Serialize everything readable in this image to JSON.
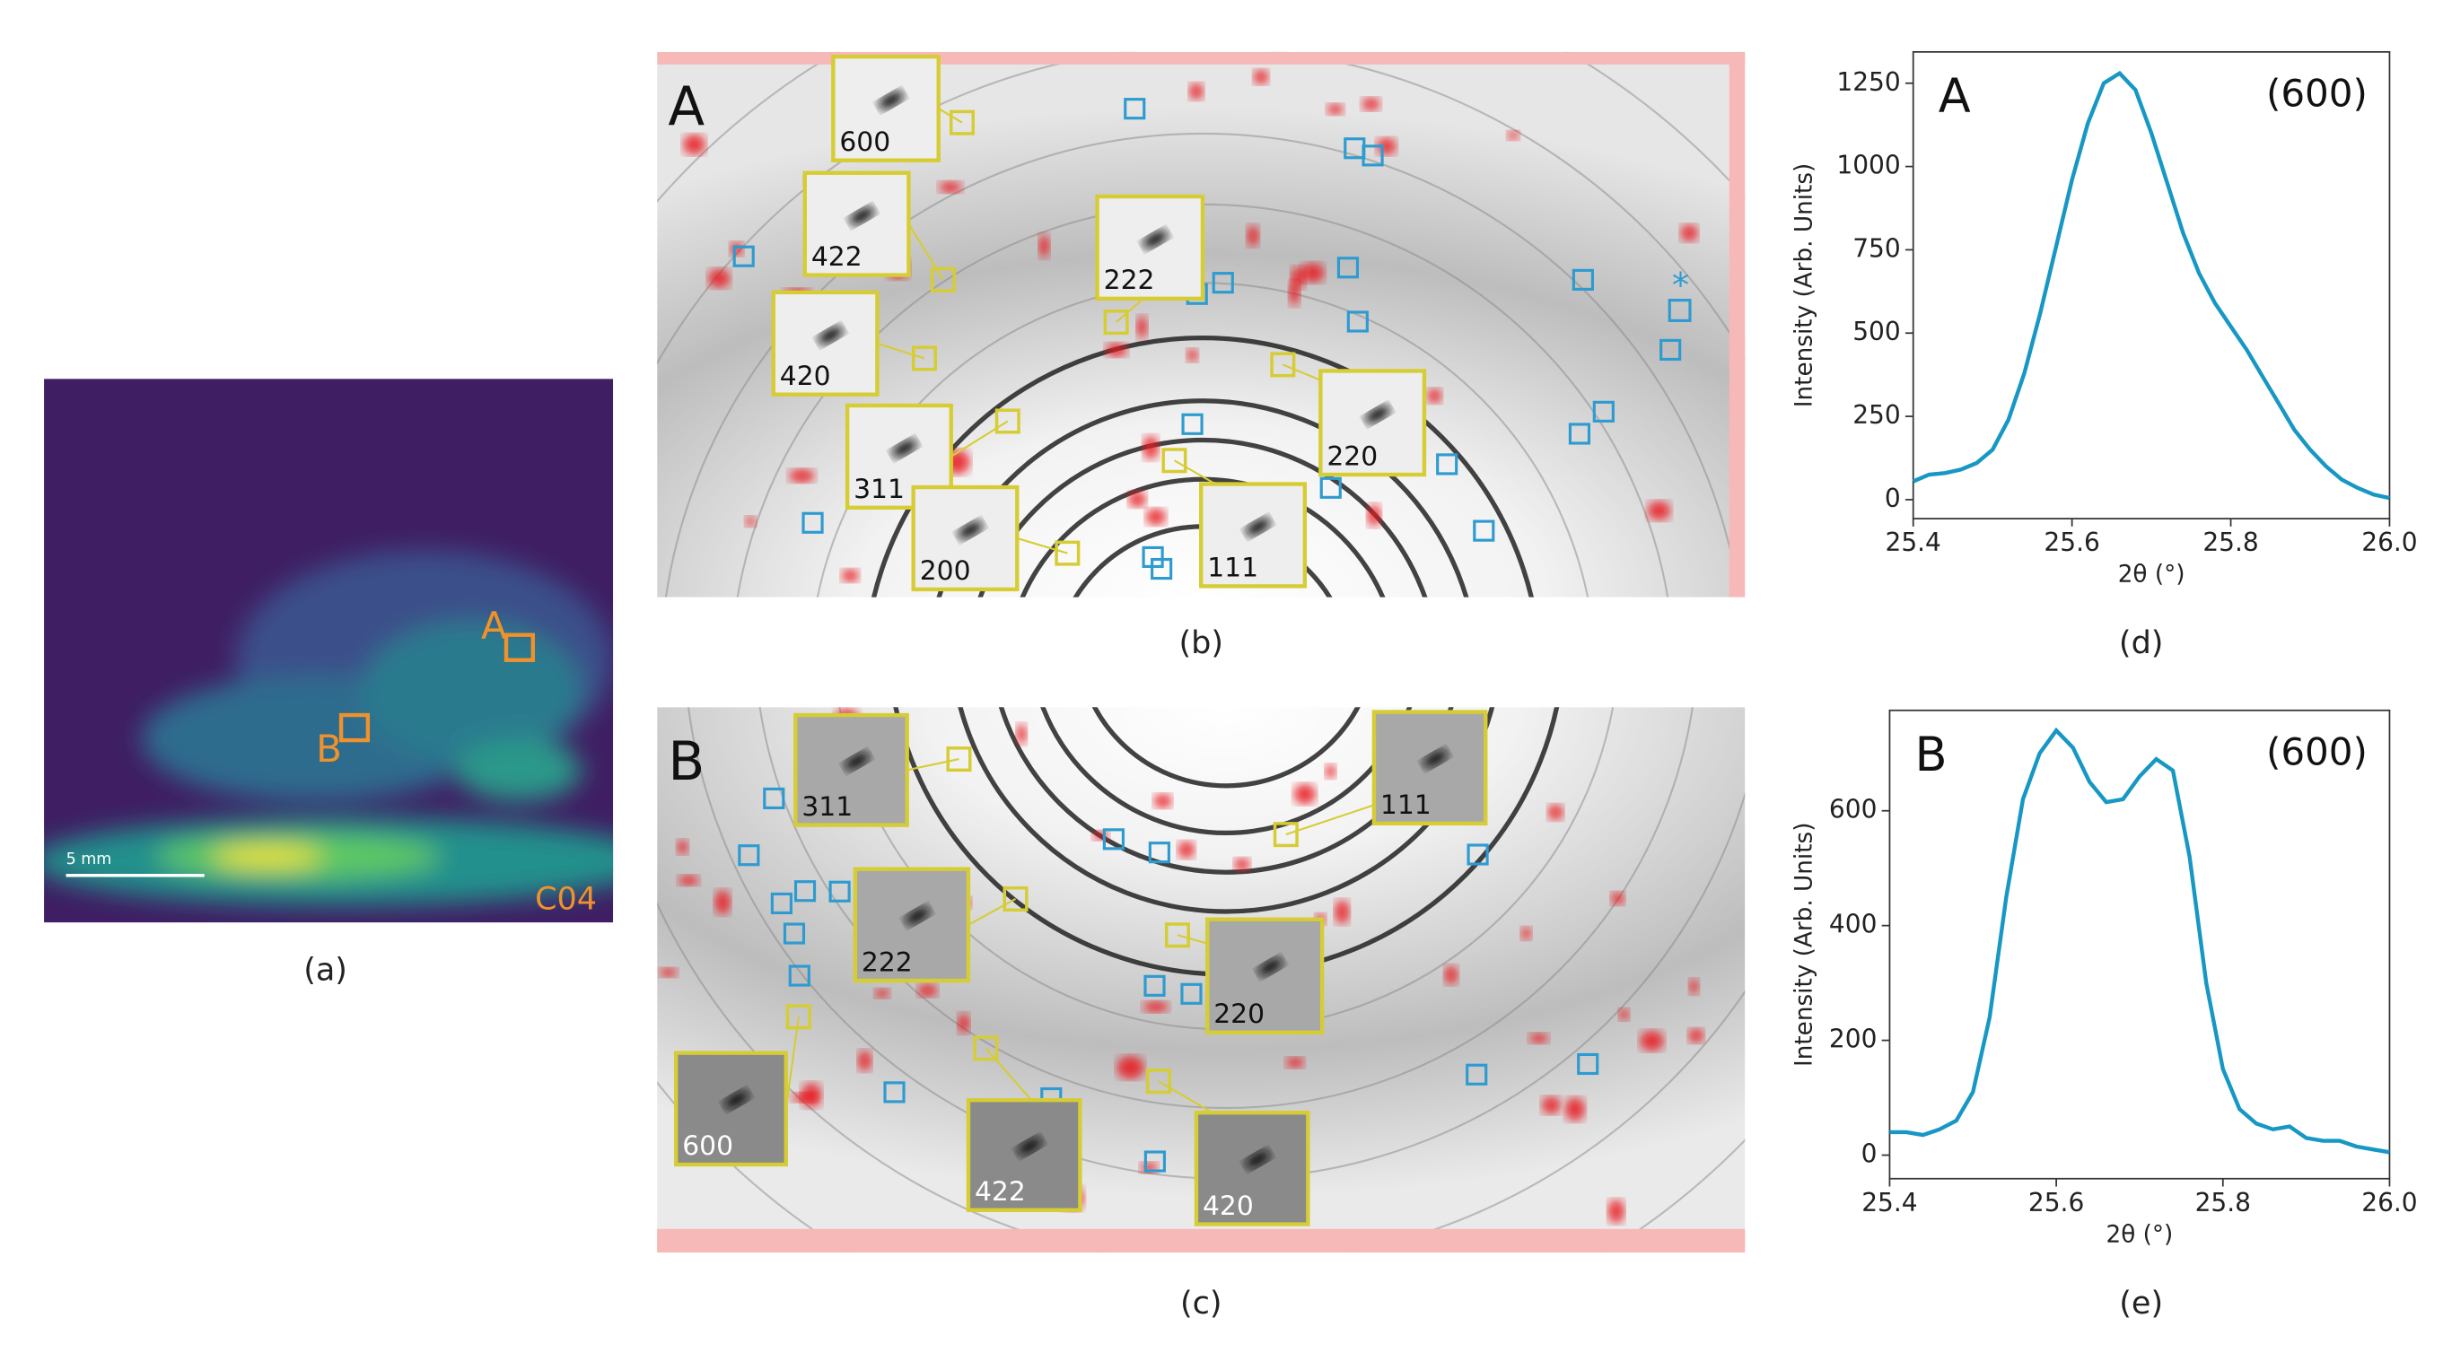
{
  "panels": {
    "captions": [
      "(a)",
      "(b)",
      "(c)",
      "(d)",
      "(e)"
    ]
  },
  "map": {
    "labels": [
      "A",
      "B"
    ],
    "scale_bar": "5 mm",
    "sample": "C04"
  },
  "patterns": [
    {
      "label": "A",
      "reflections": [
        "600",
        "422",
        "222",
        "420",
        "311",
        "220",
        "200",
        "111"
      ],
      "marker": "*"
    },
    {
      "label": "B",
      "reflections": [
        "311",
        "111",
        "222",
        "220",
        "600",
        "422",
        "420"
      ]
    }
  ],
  "chart_data": [
    {
      "type": "line",
      "label": "A",
      "annotation": "(600)",
      "xlabel": "2θ (°)",
      "ylabel": "Intensity (Arb. Units)",
      "x": [
        25.4,
        25.42,
        25.44,
        25.46,
        25.48,
        25.5,
        25.52,
        25.54,
        25.56,
        25.58,
        25.6,
        25.62,
        25.64,
        25.66,
        25.68,
        25.7,
        25.72,
        25.74,
        25.76,
        25.78,
        25.8,
        25.82,
        25.84,
        25.86,
        25.88,
        25.9,
        25.92,
        25.94,
        25.96,
        25.98,
        26.0
      ],
      "values": [
        55,
        75,
        80,
        90,
        110,
        150,
        240,
        380,
        560,
        760,
        960,
        1130,
        1250,
        1280,
        1230,
        1100,
        950,
        800,
        680,
        590,
        520,
        450,
        370,
        290,
        210,
        150,
        100,
        60,
        35,
        15,
        5
      ],
      "color": "#1797c4",
      "xlim": [
        25.4,
        26.0
      ],
      "ylim": [
        -57,
        1344
      ],
      "xticks": [
        25.4,
        25.6,
        25.8,
        {
          "value": 26.0,
          "label": "26.0"
        }
      ],
      "yticks": [
        0,
        250,
        500,
        750,
        1000,
        1250
      ]
    },
    {
      "type": "line",
      "label": "B",
      "annotation": "(600)",
      "xlabel": "2θ (°)",
      "ylabel": "Intensity (Arb. Units)",
      "x": [
        25.4,
        25.42,
        25.44,
        25.46,
        25.48,
        25.5,
        25.52,
        25.54,
        25.56,
        25.58,
        25.6,
        25.62,
        25.64,
        25.66,
        25.68,
        25.7,
        25.72,
        25.74,
        25.76,
        25.78,
        25.8,
        25.82,
        25.84,
        25.86,
        25.88,
        25.9,
        25.92,
        25.94,
        25.96,
        25.98,
        26.0
      ],
      "values": [
        40,
        40,
        35,
        45,
        60,
        110,
        240,
        450,
        620,
        700,
        740,
        710,
        650,
        615,
        620,
        660,
        690,
        670,
        520,
        300,
        150,
        80,
        55,
        45,
        50,
        30,
        25,
        25,
        15,
        10,
        5
      ],
      "color": "#1797c4",
      "xlim": [
        25.4,
        26.0
      ],
      "ylim": [
        -41,
        775
      ],
      "xticks": [
        25.4,
        25.6,
        25.8,
        {
          "value": 26.0,
          "label": "26.0"
        }
      ],
      "yticks": [
        0,
        200,
        400,
        600
      ]
    }
  ]
}
